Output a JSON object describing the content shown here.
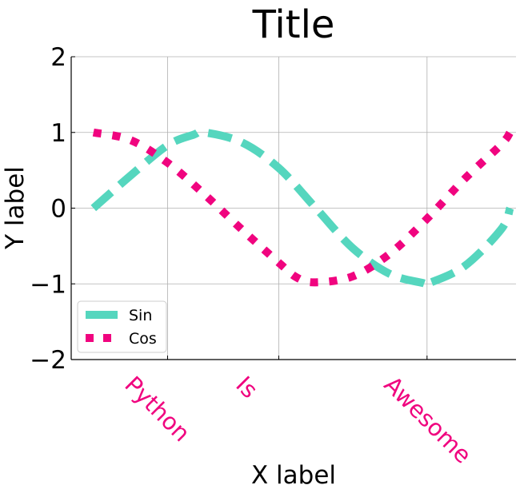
{
  "chart_data": {
    "type": "line",
    "title": "Title",
    "xlabel": "X label",
    "ylabel": "Y label",
    "ylim": [
      -2,
      2
    ],
    "yticks": [
      -2,
      -1,
      0,
      1,
      2
    ],
    "ytick_labels": [
      "−2",
      "−1",
      "0",
      "1",
      "2"
    ],
    "xtick_labels": [
      "Python",
      "Is",
      "Awesome"
    ],
    "xtick_positions": [
      1,
      2.5,
      4.5
    ],
    "xtick_color": "#f0047f",
    "xlim": [
      -0.3,
      5.7
    ],
    "grid": true,
    "legend_position": "lower-left",
    "series": [
      {
        "name": "Sin",
        "color": "#55d6be",
        "style": "dashed",
        "x": [
          0,
          0.5,
          1,
          1.35,
          1.5,
          2,
          2.5,
          3,
          3.5,
          4,
          4.45,
          4.5,
          5,
          5.5,
          5.62
        ],
        "y": [
          0,
          0.43,
          0.83,
          0.97,
          1.0,
          0.87,
          0.53,
          0.0,
          -0.53,
          -0.87,
          -0.99,
          -1.0,
          -0.77,
          -0.28,
          0.0
        ]
      },
      {
        "name": "Cos",
        "color": "#f0047f",
        "style": "dotted",
        "x": [
          0,
          0.5,
          1,
          1.5,
          2,
          2.5,
          2.75,
          3,
          3.5,
          4,
          4.5,
          5,
          5.5,
          5.62
        ],
        "y": [
          1.0,
          0.9,
          0.6,
          0.18,
          -0.28,
          -0.72,
          -0.92,
          -0.98,
          -0.9,
          -0.6,
          -0.14,
          0.38,
          0.84,
          1.0
        ]
      }
    ]
  }
}
